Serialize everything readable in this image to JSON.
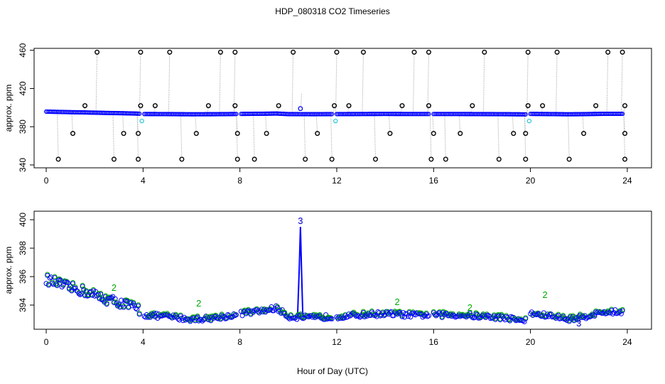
{
  "chart_data": [
    {
      "type": "scatter",
      "title": "HDP_080318  CO2 Timeseries",
      "xlabel": "Hour of Day (UTC)",
      "ylabel": "approx. ppm",
      "xlim": [
        -0.5,
        25
      ],
      "ylim": [
        337,
        462
      ],
      "xticks": [
        "0",
        "4",
        "8",
        "12",
        "16",
        "20",
        "24"
      ],
      "yticks": [
        "340",
        "380",
        "420",
        "460"
      ],
      "series": [
        {
          "name": "calibration spikes (high)",
          "color": "#000000",
          "x": [
            2.1,
            3.9,
            5.1,
            7.2,
            7.8,
            10.2,
            12.0,
            13.1,
            15.2,
            15.8,
            18.1,
            19.9,
            21.1,
            23.2,
            23.8
          ],
          "y": [
            458,
            458,
            458,
            458,
            458,
            458,
            458,
            458,
            458,
            458,
            458,
            458,
            458,
            458,
            458
          ]
        },
        {
          "name": "calibration spikes (low)",
          "color": "#000000",
          "x": [
            0.5,
            2.8,
            3.8,
            5.6,
            7.9,
            8.6,
            10.7,
            11.8,
            13.6,
            15.9,
            16.5,
            18.7,
            19.8,
            21.6,
            23.9
          ],
          "y": [
            346,
            346,
            346,
            346,
            346,
            346,
            346,
            346,
            346,
            346,
            346,
            346,
            346,
            346,
            346
          ]
        },
        {
          "name": "calibration spikes (mid)",
          "color": "#000000",
          "x": [
            1.1,
            1.6,
            3.2,
            3.8,
            3.9,
            4.5,
            6.2,
            6.7,
            7.8,
            7.9,
            9.1,
            9.6,
            11.2,
            11.9,
            12.5,
            14.2,
            14.7,
            15.8,
            16.0,
            17.1,
            17.6,
            19.3,
            19.8,
            19.9,
            20.5,
            22.2,
            22.7,
            23.9,
            23.9
          ],
          "y": [
            373,
            402,
            373,
            373,
            402,
            402,
            373,
            402,
            402,
            373,
            373,
            402,
            373,
            402,
            402,
            373,
            402,
            402,
            373,
            373,
            402,
            373,
            373,
            402,
            402,
            373,
            402,
            373,
            402
          ]
        },
        {
          "name": "ambient (blue)",
          "color": "#0000ff"
        },
        {
          "name": "flagged (cyan)",
          "color": "#22c5d8"
        }
      ],
      "annotations": []
    },
    {
      "type": "scatter",
      "title": "",
      "xlabel": "Hour of Day (UTC)",
      "ylabel": "approx. ppm",
      "xlim": [
        -0.5,
        25
      ],
      "ylim": [
        392.3,
        400.6
      ],
      "xticks": [
        "0",
        "4",
        "8",
        "12",
        "16",
        "20",
        "24"
      ],
      "yticks": [
        "394",
        "396",
        "398",
        "400"
      ],
      "series": [
        {
          "name": "CO2 (blue circles)",
          "color": "#0000ff"
        },
        {
          "name": "flag 2 (green)",
          "color": "#00aa00"
        },
        {
          "name": "flag 3 (blue)",
          "color": "#0000cc"
        }
      ],
      "annotations": [
        {
          "text": "3",
          "x": 10.5,
          "y": 399.7,
          "color": "#0000cc"
        },
        {
          "text": "2",
          "x": 6.3,
          "y": 393.9,
          "color": "#00aa00"
        },
        {
          "text": "2",
          "x": 14.5,
          "y": 394.0,
          "color": "#00aa00"
        },
        {
          "text": "2",
          "x": 2.8,
          "y": 395.0,
          "color": "#00aa00"
        },
        {
          "text": "2",
          "x": 20.6,
          "y": 394.5,
          "color": "#00aa00"
        },
        {
          "text": "2",
          "x": 17.5,
          "y": 393.6,
          "color": "#00aa00"
        },
        {
          "text": "3",
          "x": 22.0,
          "y": 392.5,
          "color": "#0000cc"
        }
      ]
    }
  ],
  "co2_profile": {
    "anchors_x": [
      0,
      0.5,
      1.0,
      1.5,
      2.0,
      2.5,
      3.0,
      3.5,
      3.8,
      4.0,
      5.0,
      6.0,
      7.0,
      7.8,
      8.0,
      9.0,
      9.5,
      10.0,
      11.0,
      12.0,
      13.0,
      14.0,
      15.0,
      15.8,
      16.0,
      17.0,
      18.0,
      19.0,
      19.8,
      20.0,
      20.5,
      21.0,
      21.5,
      22.0,
      22.5,
      23.0,
      23.8
    ],
    "anchors_y": [
      395.8,
      395.5,
      395.2,
      395.0,
      394.7,
      394.4,
      394.2,
      393.9,
      393.7,
      393.3,
      393.2,
      393.0,
      393.1,
      393.3,
      393.4,
      393.6,
      393.8,
      393.2,
      393.1,
      393.2,
      393.3,
      393.4,
      393.3,
      393.3,
      393.3,
      393.3,
      393.2,
      393.1,
      392.9,
      393.4,
      393.3,
      393.2,
      393.0,
      393.1,
      393.3,
      393.5,
      393.5
    ],
    "gaps": [
      [
        3.85,
        4.0
      ],
      [
        7.85,
        8.0
      ],
      [
        11.85,
        12.0
      ],
      [
        15.85,
        16.0
      ],
      [
        19.85,
        20.0
      ]
    ],
    "spike": {
      "x": 10.5,
      "peak": 399.5
    }
  }
}
